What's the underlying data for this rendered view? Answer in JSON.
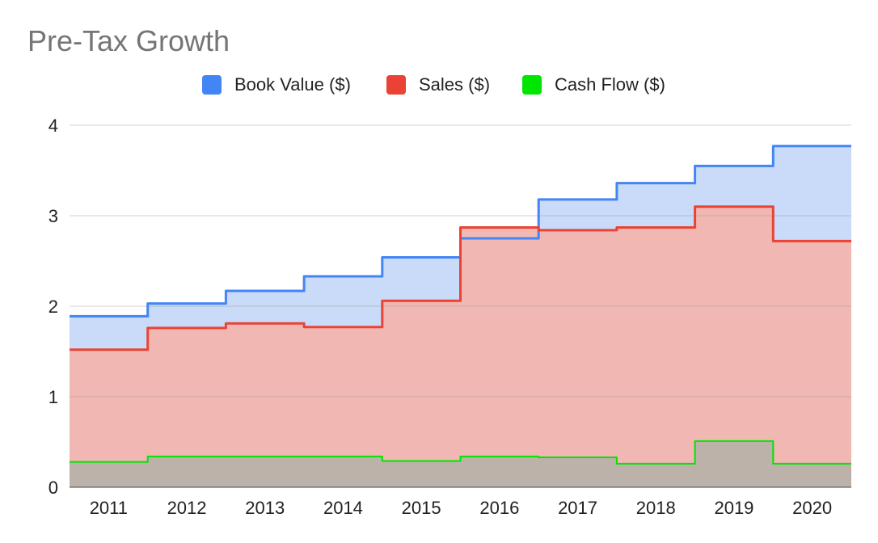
{
  "chart_data": {
    "type": "area",
    "subtype": "stepped-area",
    "title": "Pre-Tax Growth",
    "xlabel": "",
    "ylabel": "",
    "categories": [
      "2011",
      "2012",
      "2013",
      "2014",
      "2015",
      "2016",
      "2017",
      "2018",
      "2019",
      "2020"
    ],
    "ylim": [
      0,
      4
    ],
    "yticks": [
      "0",
      "1",
      "2",
      "3",
      "4"
    ],
    "grid": true,
    "legend_position": "top",
    "series": [
      {
        "name": "Book Value ($)",
        "color": "#4285f4",
        "fill": "#c6d9f8",
        "values": [
          1.89,
          2.03,
          2.17,
          2.33,
          2.54,
          2.75,
          3.18,
          3.36,
          3.55,
          3.77
        ]
      },
      {
        "name": "Sales ($)",
        "color": "#ea4335",
        "fill": "#f3b5ae",
        "values": [
          1.52,
          1.76,
          1.81,
          1.77,
          2.06,
          2.87,
          2.84,
          2.87,
          3.1,
          2.72
        ]
      },
      {
        "name": "Cash Flow ($)",
        "color": "#00e600",
        "fill": "#b9b1aa",
        "values": [
          0.28,
          0.34,
          0.34,
          0.34,
          0.29,
          0.34,
          0.33,
          0.26,
          0.51,
          0.26
        ]
      }
    ]
  }
}
